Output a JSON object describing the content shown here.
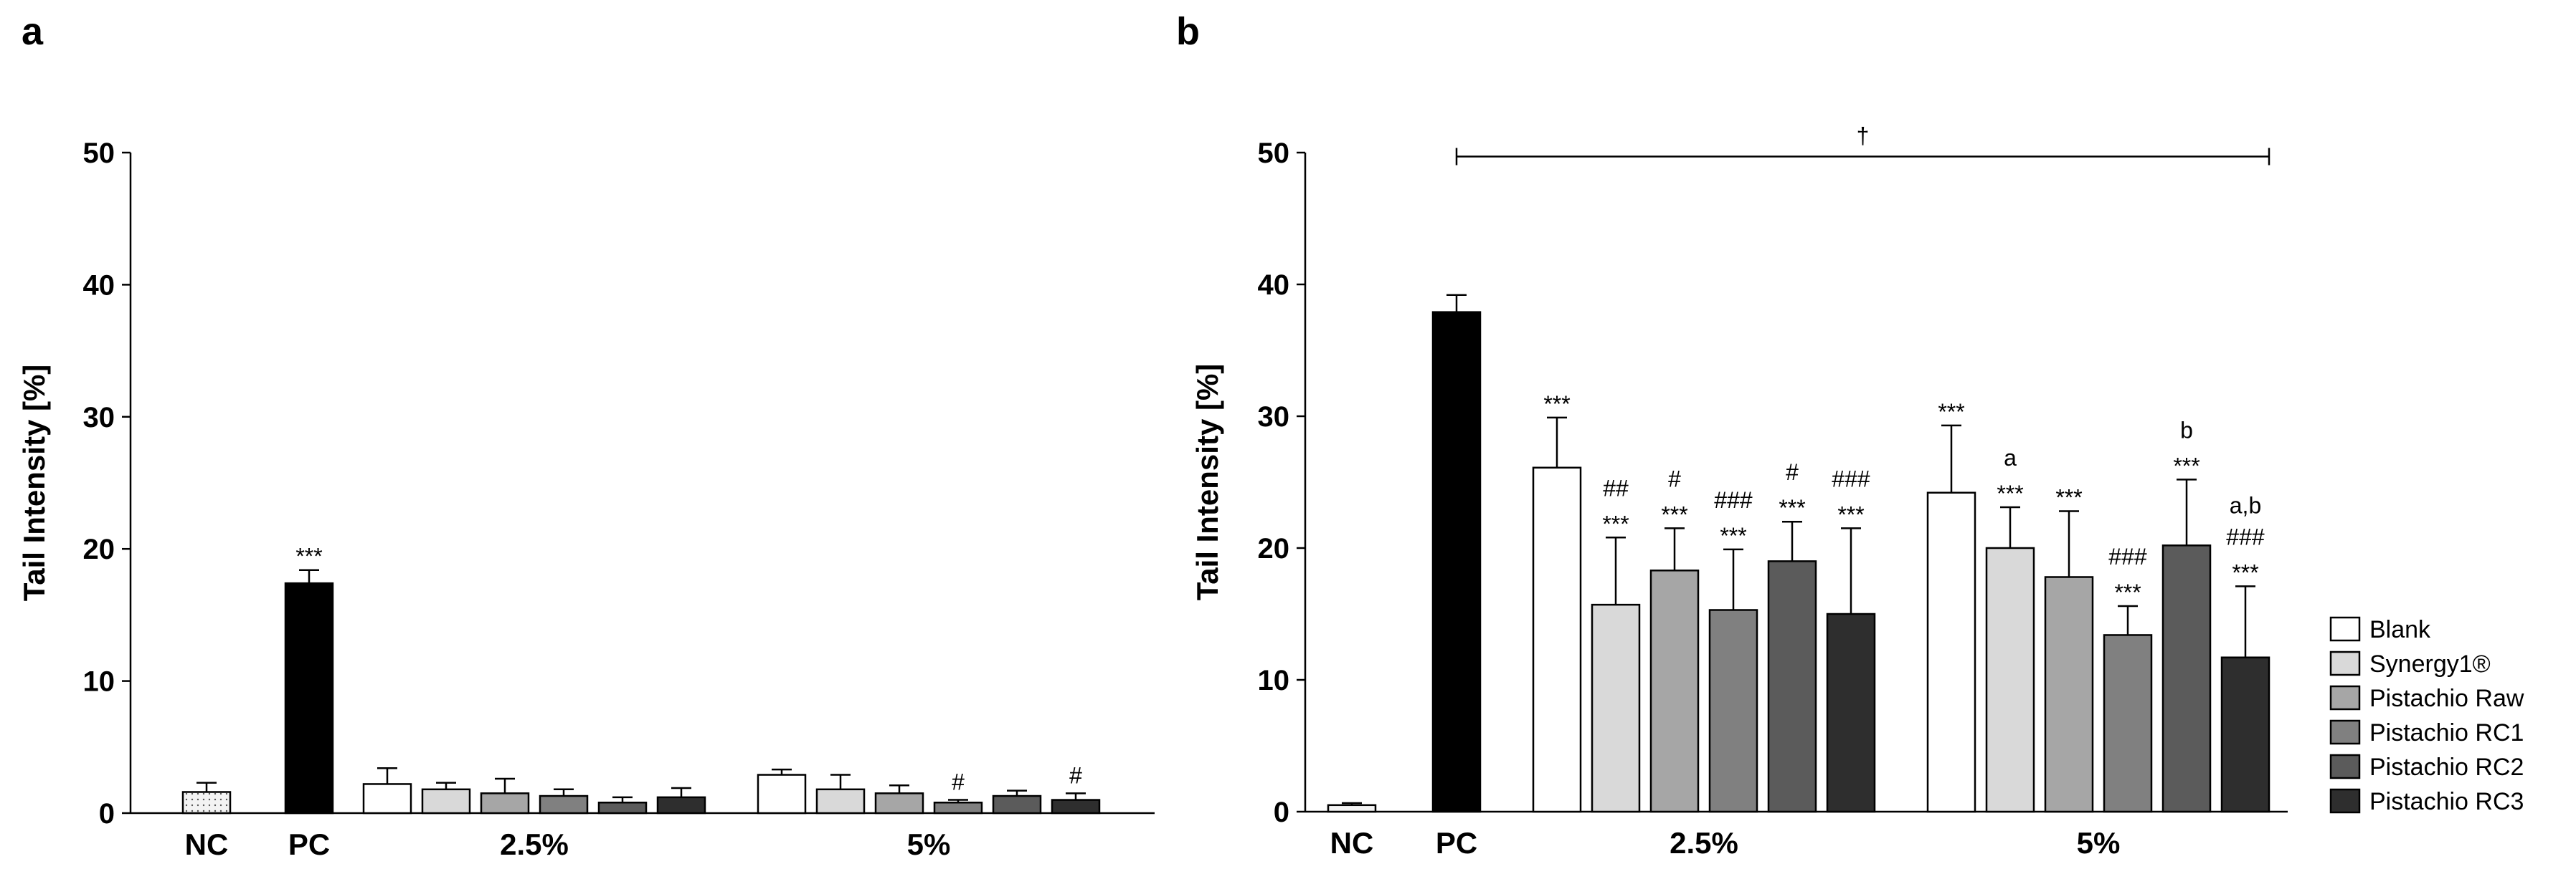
{
  "figure": {
    "panels": [
      "a",
      "b"
    ]
  },
  "colors": {
    "Blank": "#ffffff",
    "Synergy1®": "#d9d9d9",
    "Pistachio Raw": "#a6a6a6",
    "Pistachio RC1": "#808080",
    "Pistachio RC2": "#5b5b5b",
    "Pistachio RC3": "#2e2e2e",
    "NC": "#f3f3f3",
    "PC": "#000000"
  },
  "chart_data": [
    {
      "type": "bar",
      "panel": "a",
      "title": "",
      "ylabel": "Tail Intensity [%]",
      "xlabel": "",
      "ylim": [
        0,
        50
      ],
      "yticks": [
        0,
        10,
        20,
        30,
        40,
        50
      ],
      "groups": [
        "NC",
        "PC",
        "2.5%",
        "5%"
      ],
      "bars": [
        {
          "group": "NC",
          "series": "NC",
          "value": 1.6,
          "err": 0.7,
          "annotations": []
        },
        {
          "group": "PC",
          "series": "PC",
          "value": 17.4,
          "err": 1.0,
          "annotations": [
            "***"
          ]
        },
        {
          "group": "2.5%",
          "series": "Blank",
          "value": 2.2,
          "err": 1.2,
          "annotations": []
        },
        {
          "group": "2.5%",
          "series": "Synergy1®",
          "value": 1.8,
          "err": 0.5,
          "annotations": []
        },
        {
          "group": "2.5%",
          "series": "Pistachio Raw",
          "value": 1.5,
          "err": 1.1,
          "annotations": []
        },
        {
          "group": "2.5%",
          "series": "Pistachio RC1",
          "value": 1.3,
          "err": 0.5,
          "annotations": []
        },
        {
          "group": "2.5%",
          "series": "Pistachio RC2",
          "value": 0.8,
          "err": 0.4,
          "annotations": []
        },
        {
          "group": "2.5%",
          "series": "Pistachio RC3",
          "value": 1.2,
          "err": 0.7,
          "annotations": []
        },
        {
          "group": "5%",
          "series": "Blank",
          "value": 2.9,
          "err": 0.4,
          "annotations": []
        },
        {
          "group": "5%",
          "series": "Synergy1®",
          "value": 1.8,
          "err": 1.1,
          "annotations": []
        },
        {
          "group": "5%",
          "series": "Pistachio Raw",
          "value": 1.5,
          "err": 0.6,
          "annotations": []
        },
        {
          "group": "5%",
          "series": "Pistachio RC1",
          "value": 0.8,
          "err": 0.2,
          "annotations": [
            "#"
          ]
        },
        {
          "group": "5%",
          "series": "Pistachio RC2",
          "value": 1.3,
          "err": 0.4,
          "annotations": []
        },
        {
          "group": "5%",
          "series": "Pistachio RC3",
          "value": 1.0,
          "err": 0.5,
          "annotations": [
            "#"
          ]
        }
      ]
    },
    {
      "type": "bar",
      "panel": "b",
      "title": "",
      "ylabel": "Tail Intensity [%]",
      "xlabel": "",
      "ylim": [
        0,
        50
      ],
      "yticks": [
        0,
        10,
        20,
        30,
        40,
        50
      ],
      "groups": [
        "NC",
        "PC",
        "2.5%",
        "5%"
      ],
      "bracket": {
        "label": "†",
        "from_group": "PC",
        "to_group": "5%",
        "y": 49.7
      },
      "bars": [
        {
          "group": "NC",
          "series": "NC",
          "value": 0.5,
          "err": 0.15,
          "annotations": []
        },
        {
          "group": "PC",
          "series": "PC",
          "value": 37.9,
          "err": 1.3,
          "annotations": []
        },
        {
          "group": "2.5%",
          "series": "Blank",
          "value": 26.1,
          "err": 3.8,
          "annotations": [
            "***"
          ]
        },
        {
          "group": "2.5%",
          "series": "Synergy1®",
          "value": 15.7,
          "err": 5.1,
          "annotations": [
            "***",
            "##"
          ]
        },
        {
          "group": "2.5%",
          "series": "Pistachio Raw",
          "value": 18.3,
          "err": 3.2,
          "annotations": [
            "***",
            "#"
          ]
        },
        {
          "group": "2.5%",
          "series": "Pistachio RC1",
          "value": 15.3,
          "err": 4.6,
          "annotations": [
            "***",
            "###"
          ]
        },
        {
          "group": "2.5%",
          "series": "Pistachio RC2",
          "value": 19.0,
          "err": 3.0,
          "annotations": [
            "***",
            "#"
          ]
        },
        {
          "group": "2.5%",
          "series": "Pistachio RC3",
          "value": 15.0,
          "err": 6.5,
          "annotations": [
            "***",
            "###"
          ]
        },
        {
          "group": "5%",
          "series": "Blank",
          "value": 24.2,
          "err": 5.1,
          "annotations": [
            "***"
          ]
        },
        {
          "group": "5%",
          "series": "Synergy1®",
          "value": 20.0,
          "err": 3.1,
          "annotations": [
            "***",
            "a"
          ]
        },
        {
          "group": "5%",
          "series": "Pistachio Raw",
          "value": 17.8,
          "err": 5.0,
          "annotations": [
            "***"
          ]
        },
        {
          "group": "5%",
          "series": "Pistachio RC1",
          "value": 13.4,
          "err": 2.2,
          "annotations": [
            "***",
            "###"
          ]
        },
        {
          "group": "5%",
          "series": "Pistachio RC2",
          "value": 20.2,
          "err": 5.0,
          "annotations": [
            "***",
            "b"
          ]
        },
        {
          "group": "5%",
          "series": "Pistachio RC3",
          "value": 11.7,
          "err": 5.4,
          "annotations": [
            "***",
            "###",
            "a,b"
          ]
        }
      ],
      "legend": {
        "position": "right",
        "entries": [
          "Blank",
          "Synergy1®",
          "Pistachio Raw",
          "Pistachio RC1",
          "Pistachio RC2",
          "Pistachio RC3"
        ]
      }
    }
  ]
}
